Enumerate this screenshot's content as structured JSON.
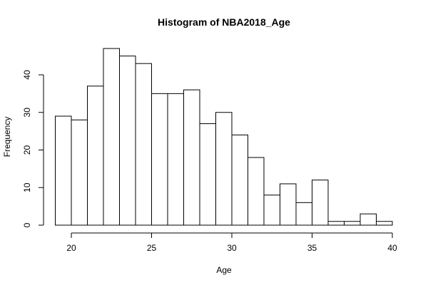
{
  "chart_data": {
    "type": "bar",
    "title": "Histogram of NBA2018_Age",
    "xlabel": "Age",
    "ylabel": "Frequency",
    "bin_edges": [
      19,
      20,
      21,
      22,
      23,
      24,
      25,
      26,
      27,
      28,
      29,
      30,
      31,
      32,
      33,
      34,
      35,
      36,
      37,
      38,
      39,
      40
    ],
    "values": [
      29,
      28,
      37,
      47,
      45,
      43,
      35,
      35,
      36,
      27,
      30,
      24,
      18,
      8,
      11,
      6,
      12,
      1,
      1,
      3,
      1
    ],
    "xlim": [
      19,
      40
    ],
    "ylim": [
      0,
      47
    ],
    "xticks": [
      20,
      25,
      30,
      35,
      40
    ],
    "yticks": [
      0,
      10,
      20,
      30,
      40
    ],
    "grid": false,
    "colors": {
      "bar_fill": "#ffffff",
      "bar_stroke": "#000000"
    }
  }
}
